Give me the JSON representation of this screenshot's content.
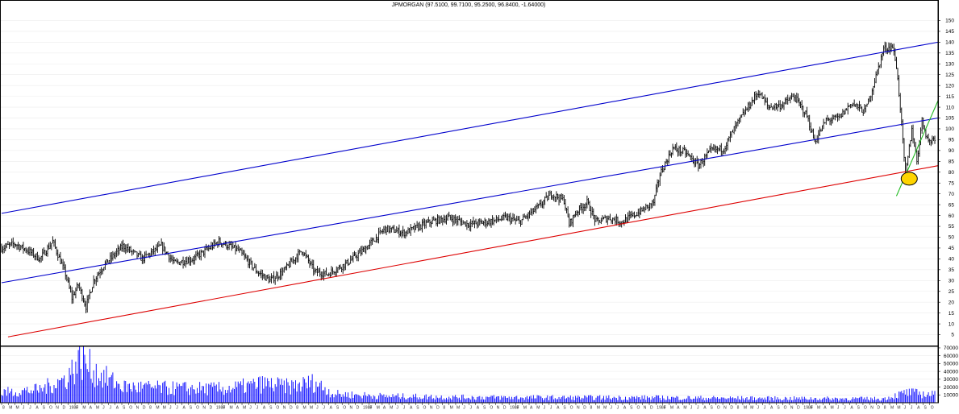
{
  "chart_data": {
    "type": "bar",
    "title": "JPMORGAN (97.5100, 99.7100, 95.2500, 96.8400, -1.64000)",
    "price_axis": {
      "ylim": [
        0,
        155
      ],
      "ticks": [
        5,
        10,
        15,
        20,
        25,
        30,
        35,
        40,
        45,
        50,
        55,
        60,
        65,
        70,
        75,
        80,
        85,
        90,
        95,
        100,
        105,
        110,
        115,
        120,
        125,
        130,
        135,
        140,
        145,
        150
      ]
    },
    "volume_axis": {
      "ylim": [
        0,
        72000
      ],
      "ticks": [
        10000,
        20000,
        30000,
        40000,
        50000,
        60000,
        70000
      ]
    },
    "price_anchors": [
      [
        0,
        45
      ],
      [
        10,
        47
      ],
      [
        20,
        44
      ],
      [
        30,
        40
      ],
      [
        40,
        48
      ],
      [
        50,
        33
      ],
      [
        55,
        22
      ],
      [
        60,
        28
      ],
      [
        66,
        18
      ],
      [
        72,
        30
      ],
      [
        80,
        37
      ],
      [
        95,
        46
      ],
      [
        110,
        40
      ],
      [
        125,
        46
      ],
      [
        135,
        38
      ],
      [
        150,
        40
      ],
      [
        170,
        48
      ],
      [
        185,
        44
      ],
      [
        200,
        34
      ],
      [
        210,
        30
      ],
      [
        220,
        34
      ],
      [
        235,
        44
      ],
      [
        245,
        34
      ],
      [
        255,
        33
      ],
      [
        270,
        38
      ],
      [
        285,
        45
      ],
      [
        300,
        54
      ],
      [
        315,
        52
      ],
      [
        335,
        57
      ],
      [
        350,
        59
      ],
      [
        365,
        56
      ],
      [
        380,
        57
      ],
      [
        395,
        59
      ],
      [
        405,
        57
      ],
      [
        420,
        64
      ],
      [
        430,
        70
      ],
      [
        440,
        67
      ],
      [
        444,
        56
      ],
      [
        450,
        62
      ],
      [
        458,
        66
      ],
      [
        465,
        57
      ],
      [
        475,
        59
      ],
      [
        485,
        57
      ],
      [
        500,
        62
      ],
      [
        510,
        66
      ],
      [
        515,
        79
      ],
      [
        525,
        91
      ],
      [
        535,
        89
      ],
      [
        545,
        83
      ],
      [
        555,
        90
      ],
      [
        565,
        91
      ],
      [
        575,
        102
      ],
      [
        585,
        111
      ],
      [
        592,
        117
      ],
      [
        600,
        110
      ],
      [
        610,
        111
      ],
      [
        620,
        115
      ],
      [
        630,
        106
      ],
      [
        636,
        94
      ],
      [
        645,
        104
      ],
      [
        655,
        105
      ],
      [
        665,
        112
      ],
      [
        675,
        108
      ],
      [
        680,
        116
      ],
      [
        690,
        137
      ],
      [
        697,
        138
      ],
      [
        700,
        129
      ],
      [
        703,
        110
      ],
      [
        707,
        78
      ],
      [
        712,
        100
      ],
      [
        716,
        85
      ],
      [
        720,
        104
      ],
      [
        725,
        94
      ],
      [
        730,
        96
      ]
    ],
    "volume_anchors": [
      [
        0,
        14000
      ],
      [
        30,
        18000
      ],
      [
        50,
        33000
      ],
      [
        62,
        60000
      ],
      [
        75,
        40000
      ],
      [
        95,
        22000
      ],
      [
        130,
        20000
      ],
      [
        175,
        19000
      ],
      [
        205,
        26000
      ],
      [
        225,
        22000
      ],
      [
        245,
        28000
      ],
      [
        260,
        12000
      ],
      [
        300,
        9000
      ],
      [
        360,
        7500
      ],
      [
        440,
        7000
      ],
      [
        500,
        7000
      ],
      [
        600,
        6000
      ],
      [
        690,
        5500
      ],
      [
        708,
        14000
      ],
      [
        730,
        11000
      ]
    ],
    "n_bars": 731,
    "trend_lines": [
      {
        "color": "#0000cc",
        "from": [
          0,
          61
        ],
        "to": [
          760,
          140
        ]
      },
      {
        "color": "#0000cc",
        "from": [
          0,
          29
        ],
        "to": [
          760,
          105
        ]
      },
      {
        "color": "#dd0000",
        "from": [
          5,
          4
        ],
        "to": [
          760,
          83
        ]
      },
      {
        "color": "#22bb22",
        "from": [
          700,
          69
        ],
        "to": [
          745,
          113
        ]
      }
    ],
    "highlight": {
      "x": 710,
      "y": 77,
      "fill": "#ffd400",
      "stroke": "#000000"
    },
    "x_tick_labels": [
      "8",
      "M",
      "M",
      "J",
      "J",
      "A",
      "S",
      "O",
      "N",
      "D",
      "1988",
      "F",
      "M",
      "A",
      "M",
      "J",
      "J",
      "A",
      "S",
      "O",
      "N",
      "D"
    ],
    "grid": true,
    "colors": {
      "bars": "#000000",
      "volume": "#0000ff",
      "border": "#000000"
    }
  }
}
